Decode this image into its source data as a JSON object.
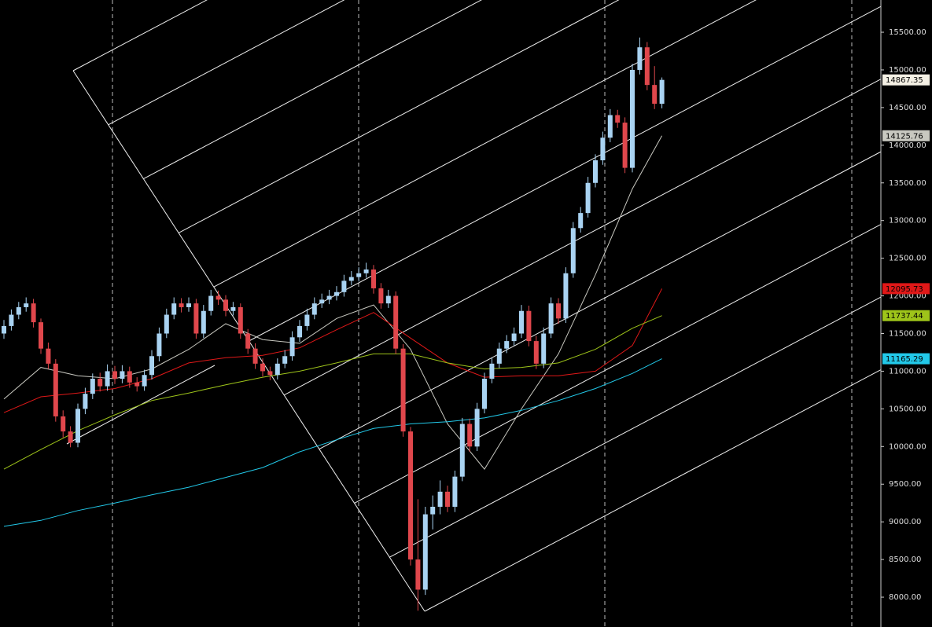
{
  "chart_data": {
    "type": "candlestick",
    "up_color": "#a9d3f2",
    "down_color": "#e0474c",
    "ohlc": [
      [
        11500,
        11680,
        11430,
        11600
      ],
      [
        11600,
        11820,
        11540,
        11750
      ],
      [
        11750,
        11920,
        11690,
        11850
      ],
      [
        11850,
        11980,
        11790,
        11900
      ],
      [
        11900,
        11960,
        11580,
        11650
      ],
      [
        11650,
        11700,
        11230,
        11300
      ],
      [
        11300,
        11380,
        11030,
        11100
      ],
      [
        11100,
        11160,
        10330,
        10400
      ],
      [
        10400,
        10480,
        10120,
        10200
      ],
      [
        10200,
        10270,
        9990,
        10050
      ],
      [
        10050,
        10570,
        9990,
        10500
      ],
      [
        10500,
        10780,
        10430,
        10700
      ],
      [
        10700,
        10970,
        10630,
        10900
      ],
      [
        10900,
        10980,
        10730,
        10800
      ],
      [
        10800,
        11090,
        10740,
        11000
      ],
      [
        11000,
        11070,
        10830,
        10900
      ],
      [
        10900,
        11080,
        10840,
        11000
      ],
      [
        11000,
        11060,
        10780,
        10850
      ],
      [
        10850,
        10920,
        10730,
        10800
      ],
      [
        10800,
        11020,
        10740,
        10950
      ],
      [
        10950,
        11280,
        10890,
        11200
      ],
      [
        11200,
        11580,
        11130,
        11500
      ],
      [
        11500,
        11830,
        11440,
        11750
      ],
      [
        11750,
        11980,
        11690,
        11900
      ],
      [
        11900,
        11970,
        11780,
        11850
      ],
      [
        11850,
        11980,
        11790,
        11900
      ],
      [
        11900,
        11960,
        11430,
        11500
      ],
      [
        11500,
        11880,
        11440,
        11800
      ],
      [
        11800,
        12080,
        11740,
        12000
      ],
      [
        12000,
        12070,
        11880,
        11950
      ],
      [
        11950,
        12010,
        11730,
        11800
      ],
      [
        11800,
        11920,
        11740,
        11850
      ],
      [
        11850,
        11900,
        11430,
        11500
      ],
      [
        11500,
        11560,
        11230,
        11300
      ],
      [
        11300,
        11370,
        11030,
        11100
      ],
      [
        11100,
        11170,
        10930,
        11000
      ],
      [
        11000,
        11060,
        10880,
        10950
      ],
      [
        10950,
        11170,
        10890,
        11100
      ],
      [
        11100,
        11280,
        11040,
        11200
      ],
      [
        11200,
        11530,
        11140,
        11450
      ],
      [
        11450,
        11680,
        11390,
        11600
      ],
      [
        11600,
        11830,
        11540,
        11750
      ],
      [
        11750,
        11980,
        11690,
        11900
      ],
      [
        11900,
        12030,
        11840,
        11950
      ],
      [
        11950,
        12080,
        11890,
        12000
      ],
      [
        12000,
        12130,
        11940,
        12050
      ],
      [
        12050,
        12280,
        11990,
        12200
      ],
      [
        12200,
        12330,
        12140,
        12250
      ],
      [
        12250,
        12380,
        12190,
        12300
      ],
      [
        12300,
        12440,
        12240,
        12350
      ],
      [
        12350,
        12410,
        12030,
        12100
      ],
      [
        12100,
        12170,
        11830,
        11900
      ],
      [
        11900,
        12080,
        11840,
        12000
      ],
      [
        12000,
        12060,
        11230,
        11300
      ],
      [
        11300,
        11360,
        10130,
        10200
      ],
      [
        10200,
        10260,
        8420,
        8500
      ],
      [
        8500,
        9300,
        7820,
        8100
      ],
      [
        8100,
        9200,
        8030,
        9100
      ],
      [
        9100,
        9350,
        8900,
        9200
      ],
      [
        9200,
        9550,
        9100,
        9400
      ],
      [
        9400,
        9480,
        9130,
        9200
      ],
      [
        9200,
        9680,
        9130,
        9600
      ],
      [
        9600,
        10380,
        9540,
        10300
      ],
      [
        10300,
        10370,
        9930,
        10000
      ],
      [
        10000,
        10580,
        9940,
        10500
      ],
      [
        10500,
        10980,
        10440,
        10900
      ],
      [
        10900,
        11180,
        10840,
        11100
      ],
      [
        11100,
        11380,
        11040,
        11300
      ],
      [
        11300,
        11480,
        11240,
        11400
      ],
      [
        11400,
        11580,
        11340,
        11500
      ],
      [
        11500,
        11880,
        11440,
        11800
      ],
      [
        11800,
        11870,
        11330,
        11400
      ],
      [
        11400,
        11470,
        11030,
        11100
      ],
      [
        11100,
        11580,
        11040,
        11500
      ],
      [
        11500,
        11980,
        11440,
        11900
      ],
      [
        11900,
        11970,
        11630,
        11700
      ],
      [
        11700,
        12380,
        11640,
        12300
      ],
      [
        12300,
        12980,
        12240,
        12900
      ],
      [
        12900,
        13180,
        12840,
        13100
      ],
      [
        13100,
        13580,
        13040,
        13500
      ],
      [
        13500,
        13880,
        13440,
        13800
      ],
      [
        13800,
        14180,
        13740,
        14100
      ],
      [
        14100,
        14480,
        14040,
        14400
      ],
      [
        14400,
        14470,
        14230,
        14300
      ],
      [
        14300,
        14370,
        13630,
        13700
      ],
      [
        13700,
        15080,
        13640,
        15000
      ],
      [
        15000,
        15430,
        14940,
        15300
      ],
      [
        15300,
        15370,
        14730,
        14800
      ],
      [
        14800,
        15050,
        14480,
        14550
      ],
      [
        14550,
        14900,
        14490,
        14867.35
      ]
    ],
    "ma_x": [
      0,
      5,
      10,
      15,
      20,
      25,
      30,
      35,
      40,
      45,
      50,
      55,
      60,
      65,
      70,
      75,
      80,
      85,
      89
    ],
    "series": [
      {
        "color": "#c8c8c0",
        "values": [
          10630,
          11050,
          10940,
          10900,
          11030,
          11290,
          11630,
          11420,
          11370,
          11700,
          11880,
          11290,
          10300,
          9700,
          10500,
          11230,
          12280,
          13420,
          14125.76
        ]
      },
      {
        "color": "#e01818",
        "values": [
          10450,
          10660,
          10710,
          10770,
          10900,
          11110,
          11180,
          11210,
          11310,
          11550,
          11780,
          11440,
          11110,
          10920,
          10940,
          10940,
          11000,
          11340,
          12095.73
        ]
      },
      {
        "color": "#9ec41a",
        "values": [
          9700,
          9960,
          10210,
          10420,
          10610,
          10710,
          10820,
          10920,
          11000,
          11110,
          11230,
          11230,
          11110,
          11030,
          11050,
          11110,
          11290,
          11570,
          11737.44
        ]
      },
      {
        "color": "#22c8e8",
        "values": [
          8940,
          9020,
          9150,
          9250,
          9360,
          9460,
          9590,
          9720,
          9930,
          10090,
          10240,
          10300,
          10330,
          10380,
          10480,
          10610,
          10770,
          10970,
          11165.29
        ]
      }
    ],
    "ylim": [
      7604,
      15928
    ],
    "yticks": [
      {
        "value": 8000,
        "label": "8000.00"
      },
      {
        "value": 8500,
        "label": "8500.00"
      },
      {
        "value": 9000,
        "label": "9000.00"
      },
      {
        "value": 9500,
        "label": "9500.00"
      },
      {
        "value": 10000,
        "label": "10000.00"
      },
      {
        "value": 10500,
        "label": "10500.00"
      },
      {
        "value": 11000,
        "label": "11000.00"
      },
      {
        "value": 11500,
        "label": "11500.00"
      },
      {
        "value": 12000,
        "label": "12000.00"
      },
      {
        "value": 12500,
        "label": "12500.00"
      },
      {
        "value": 13000,
        "label": "13000.00"
      },
      {
        "value": 13500,
        "label": "13500.00"
      },
      {
        "value": 14000,
        "label": "14000.00"
      },
      {
        "value": 14500,
        "label": "14500.00"
      },
      {
        "value": 15000,
        "label": "15000.00"
      },
      {
        "value": 15500,
        "label": "15500.00"
      }
    ]
  }
}
